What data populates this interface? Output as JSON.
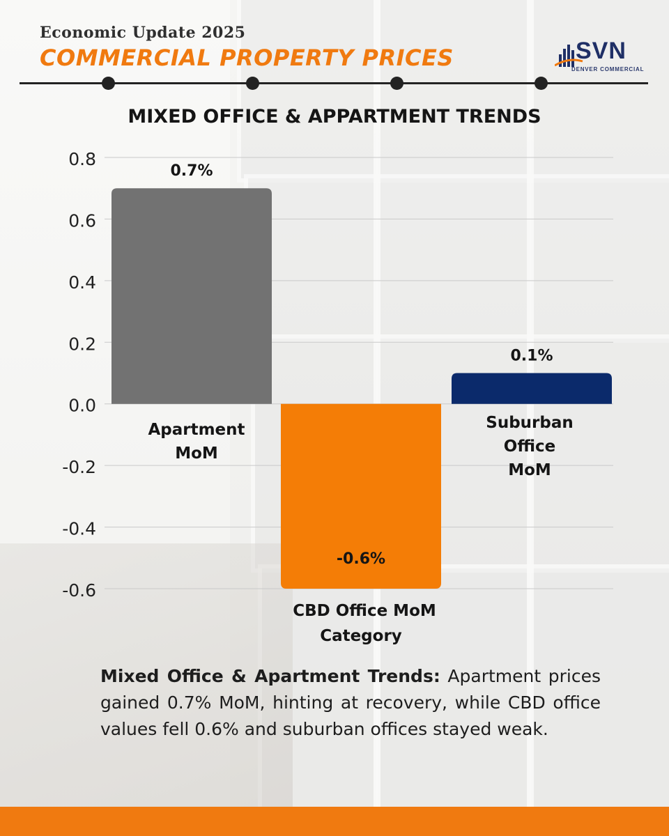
{
  "header": {
    "subtitle": "Economic Update 2025",
    "title": "COMMERCIAL PROPERTY PRICES"
  },
  "logo": {
    "name": "SVN",
    "tagline": "DENVER COMMERCIAL"
  },
  "chart_data": {
    "type": "bar",
    "title": "MIXED OFFICE & APPARTMENT TRENDS",
    "xlabel": "Category",
    "ylabel": "",
    "ylim": [
      -0.6,
      0.8
    ],
    "yticks": [
      0.8,
      0.6,
      0.4,
      0.2,
      0.0,
      -0.2,
      -0.4,
      -0.6
    ],
    "ytick_labels": [
      "0.8",
      "0.6",
      "0.4",
      "0.2",
      "0.0",
      "-0.2",
      "-0.4",
      "-0.6"
    ],
    "grid": true,
    "categories": [
      "Apartment MoM",
      "CBD Office MoM",
      "Suburban Office MoM"
    ],
    "category_lines": [
      [
        "Apartment",
        "MoM"
      ],
      [
        "CBD Office MoM"
      ],
      [
        "Suburban",
        "Office",
        "MoM"
      ]
    ],
    "values": [
      0.7,
      -0.6,
      0.1
    ],
    "data_labels": [
      "0.7%",
      "-0.6%",
      "0.1%"
    ],
    "colors": [
      "#727272",
      "#f47d06",
      "#0b2a6b"
    ]
  },
  "caption": {
    "lead": "Mixed Office & Apartment Trends:",
    "body": " Apartment prices gained 0.7% MoM, hinting at recovery, while CBD office values fell 0.6% and suburban offices stayed weak."
  },
  "colors": {
    "accent": "#f07a10",
    "dark": "#232323",
    "navy": "#0b2a6b"
  }
}
